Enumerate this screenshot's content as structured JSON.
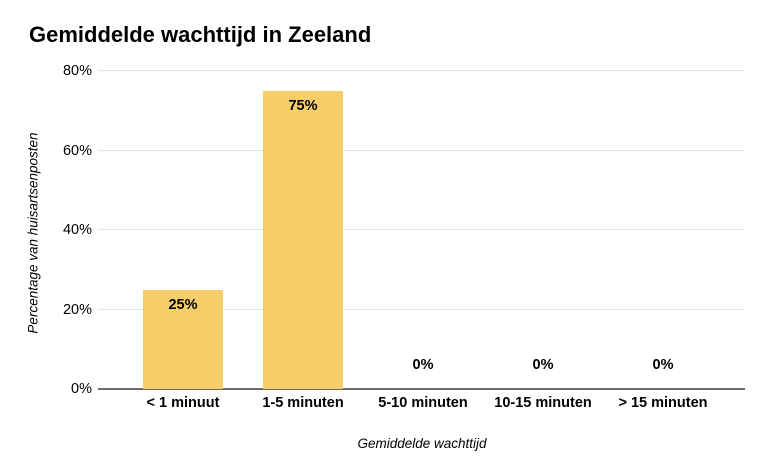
{
  "chart_data": {
    "type": "bar",
    "title": "Gemiddelde wachttijd in Zeeland",
    "categories": [
      "< 1 minuut",
      "1-5 minuten",
      "5-10 minuten",
      "10-15 minuten",
      "> 15 minuten"
    ],
    "values": [
      25,
      75,
      0,
      0,
      0
    ],
    "value_labels": [
      "25%",
      "75%",
      "0%",
      "0%",
      "0%"
    ],
    "xlabel": "Gemiddelde wachttijd",
    "ylabel": "Percentage van huisartsenposten",
    "ylim": [
      0,
      80
    ],
    "yticks": [
      0,
      20,
      40,
      60,
      80
    ],
    "ytick_labels": [
      "0%",
      "20%",
      "40%",
      "60%",
      "80%"
    ],
    "grid": "horizontal",
    "legend": "none",
    "colors": {
      "bar": "#F6CE69",
      "title": "#000000",
      "value_label": "#000000",
      "gridline": "#E3E3E3",
      "baseline": "#6B6B6B",
      "background": "#FFFFFF"
    }
  }
}
